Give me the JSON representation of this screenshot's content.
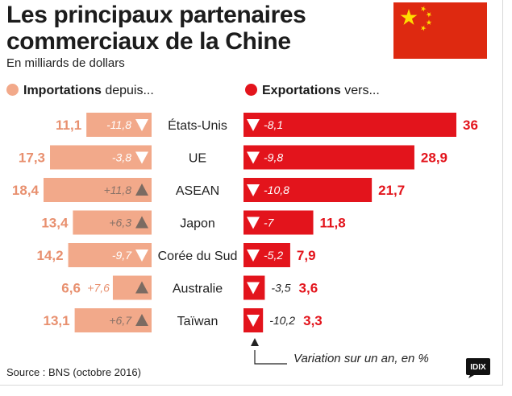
{
  "header": {
    "title_line1": "Les principaux partenaires",
    "title_line2": "commerciaux de la Chine",
    "subtitle": "En milliards de dollars"
  },
  "legend": {
    "imports_bold": "Importations",
    "imports_rest": " depuis...",
    "exports_bold": "Exportations",
    "exports_rest": " vers..."
  },
  "footer": {
    "source": "Source : BNS (octobre 2016)",
    "note": "Variation sur un an, en %",
    "logo": "IDIX"
  },
  "colors": {
    "imports": "#f2a98a",
    "imports_value": "#e8906f",
    "exports": "#e3141c",
    "triangle_import": "#7b6b62",
    "text": "#222222",
    "flag_red": "#de2910",
    "flag_star": "#ffde00"
  },
  "chart_data": {
    "type": "bar",
    "title": "Les principaux partenaires commerciaux de la Chine",
    "unit": "En milliards de dollars",
    "categories": [
      "États-Unis",
      "UE",
      "ASEAN",
      "Japon",
      "Corée du Sud",
      "Australie",
      "Taïwan"
    ],
    "series": [
      {
        "name": "Importations",
        "values": [
          11.1,
          17.3,
          18.4,
          13.4,
          14.2,
          6.6,
          13.1
        ],
        "labels": [
          "11,1",
          "17,3",
          "18,4",
          "13,4",
          "14,2",
          "6,6",
          "13,1"
        ],
        "change": [
          -11.8,
          -3.8,
          11.8,
          6.3,
          -9.7,
          7.6,
          6.7
        ],
        "change_labels": [
          "-11,8",
          "-3,8",
          "+11,8",
          "+6,3",
          "-9,7",
          "+7,6",
          "+6,7"
        ]
      },
      {
        "name": "Exportations",
        "values": [
          36,
          28.9,
          21.7,
          11.8,
          7.9,
          3.6,
          3.3
        ],
        "labels": [
          "36",
          "28,9",
          "21,7",
          "11,8",
          "7,9",
          "3,6",
          "3,3"
        ],
        "change": [
          -8.1,
          -9.8,
          -10.8,
          -7,
          -5.2,
          -3.5,
          -10.2
        ],
        "change_labels": [
          "-8,1",
          "-9,8",
          "-10,8",
          "-7",
          "-5,2",
          "-3,5",
          "-10,2"
        ]
      }
    ]
  }
}
